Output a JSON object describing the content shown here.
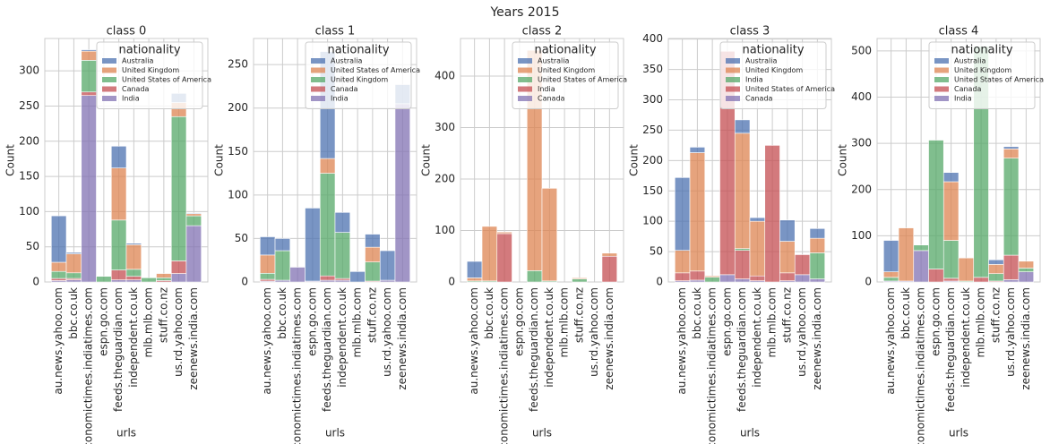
{
  "title": "Years 2015",
  "chart_data": [
    {
      "type": "bar",
      "stacked": true,
      "title": "class 0",
      "xlabel": "urls",
      "ylabel": "Count",
      "categories": [
        "au.news.yahoo.com",
        "bbc.co.uk",
        "economictimes.indiatimes.com",
        "espn.go.com",
        "feeds.theguardian.com",
        "independent.co.uk",
        "mlb.mlb.com",
        "stuff.co.nz",
        "us.rd.yahoo.com",
        "zeenews.india.com"
      ],
      "series": [
        {
          "name": "Australia",
          "color": "#4c72b0",
          "values": [
            66,
            2,
            2,
            0,
            31,
            2,
            0,
            0,
            13,
            1
          ]
        },
        {
          "name": "United Kingdom",
          "color": "#dd8452",
          "values": [
            13,
            27,
            13,
            0,
            74,
            35,
            0,
            6,
            20,
            3
          ]
        },
        {
          "name": "United States of America",
          "color": "#55a868",
          "values": [
            10,
            8,
            45,
            8,
            71,
            10,
            6,
            4,
            205,
            14
          ]
        },
        {
          "name": "Canada",
          "color": "#c44e52",
          "values": [
            3,
            2,
            5,
            0,
            14,
            5,
            0,
            2,
            18,
            0
          ]
        },
        {
          "name": "India",
          "color": "#8172b3",
          "values": [
            2,
            3,
            265,
            0,
            3,
            3,
            0,
            0,
            12,
            80
          ]
        }
      ],
      "ylim": [
        0,
        346
      ],
      "yticks": [
        0,
        50,
        100,
        150,
        200,
        250,
        300
      ],
      "grid": true,
      "legend": {
        "title": "nationality",
        "loc": "upper right"
      }
    },
    {
      "type": "bar",
      "stacked": true,
      "title": "class 1",
      "xlabel": "urls",
      "ylabel": "Count",
      "categories": [
        "au.news.yahoo.com",
        "bbc.co.uk",
        "economictimes.indiatimes.com",
        "espn.go.com",
        "feeds.theguardian.com",
        "independent.co.uk",
        "mlb.mlb.com",
        "stuff.co.nz",
        "us.rd.yahoo.com",
        "zeenews.india.com"
      ],
      "series": [
        {
          "name": "Australia",
          "color": "#4c72b0",
          "values": [
            21,
            14,
            0,
            84,
            123,
            23,
            12,
            15,
            34,
            22
          ]
        },
        {
          "name": "United States of America",
          "color": "#dd8452",
          "values": [
            21,
            0,
            0,
            0,
            17,
            0,
            0,
            17,
            0,
            0
          ]
        },
        {
          "name": "United Kingdom",
          "color": "#55a868",
          "values": [
            7,
            34,
            0,
            0,
            118,
            53,
            0,
            22,
            0,
            0
          ]
        },
        {
          "name": "Canada",
          "color": "#c44e52",
          "values": [
            2,
            0,
            0,
            0,
            5,
            2,
            0,
            1,
            0,
            0
          ]
        },
        {
          "name": "India",
          "color": "#8172b3",
          "values": [
            1,
            2,
            17,
            1,
            2,
            2,
            0,
            0,
            2,
            205
          ]
        }
      ],
      "ylim": [
        0,
        280
      ],
      "yticks": [
        0,
        50,
        100,
        150,
        200,
        250
      ],
      "grid": true,
      "legend": {
        "title": "nationality",
        "loc": "upper right"
      }
    },
    {
      "type": "bar",
      "stacked": true,
      "title": "class 2",
      "xlabel": "urls",
      "ylabel": "Count",
      "categories": [
        "au.news.yahoo.com",
        "bbc.co.uk",
        "economictimes.indiatimes.com",
        "espn.go.com",
        "feeds.theguardian.com",
        "independent.co.uk",
        "mlb.mlb.com",
        "stuff.co.nz",
        "us.rd.yahoo.com",
        "zeenews.india.com"
      ],
      "series": [
        {
          "name": "Australia",
          "color": "#4c72b0",
          "values": [
            32,
            0,
            0,
            0,
            0,
            0,
            0,
            0,
            0,
            0
          ]
        },
        {
          "name": "United Kingdom",
          "color": "#dd8452",
          "values": [
            6,
            106,
            3,
            0,
            428,
            180,
            0,
            2,
            0,
            6
          ]
        },
        {
          "name": "United States of America",
          "color": "#55a868",
          "values": [
            2,
            2,
            0,
            0,
            22,
            2,
            0,
            6,
            0,
            0
          ]
        },
        {
          "name": "India",
          "color": "#c44e52",
          "values": [
            0,
            0,
            94,
            0,
            0,
            0,
            0,
            0,
            0,
            50
          ]
        },
        {
          "name": "Canada",
          "color": "#8172b3",
          "values": [
            0,
            0,
            0,
            0,
            0,
            0,
            0,
            0,
            0,
            0
          ]
        }
      ],
      "ylim": [
        0,
        473
      ],
      "yticks": [
        0,
        100,
        200,
        300,
        400
      ],
      "grid": true,
      "legend": {
        "title": "nationality",
        "loc": "upper right"
      }
    },
    {
      "type": "bar",
      "stacked": true,
      "title": "class 3",
      "xlabel": "urls",
      "ylabel": "Count",
      "categories": [
        "au.news.yahoo.com",
        "bbc.co.uk",
        "economictimes.indiatimes.com",
        "espn.go.com",
        "feeds.theguardian.com",
        "independent.co.uk",
        "mlb.mlb.com",
        "stuff.co.nz",
        "us.rd.yahoo.com",
        "zeenews.india.com"
      ],
      "series": [
        {
          "name": "Australia",
          "color": "#4c72b0",
          "values": [
            120,
            9,
            0,
            0,
            22,
            6,
            0,
            35,
            0,
            16
          ]
        },
        {
          "name": "United Kingdom",
          "color": "#dd8452",
          "values": [
            37,
            195,
            2,
            0,
            190,
            90,
            0,
            52,
            0,
            24
          ]
        },
        {
          "name": "India",
          "color": "#55a868",
          "values": [
            0,
            0,
            8,
            0,
            3,
            0,
            0,
            0,
            0,
            43
          ]
        },
        {
          "name": "United States of America",
          "color": "#c44e52",
          "values": [
            13,
            15,
            0,
            368,
            47,
            8,
            225,
            13,
            33,
            0
          ]
        },
        {
          "name": "Canada",
          "color": "#8172b3",
          "values": [
            2,
            3,
            0,
            12,
            5,
            2,
            0,
            2,
            12,
            5
          ]
        }
      ],
      "ylim": [
        0,
        401
      ],
      "yticks": [
        0,
        50,
        100,
        150,
        200,
        250,
        300,
        350,
        400
      ],
      "grid": true,
      "legend": {
        "title": "nationality",
        "loc": "upper right"
      }
    },
    {
      "type": "bar",
      "stacked": true,
      "title": "class 4",
      "xlabel": "urls",
      "ylabel": "Count",
      "categories": [
        "au.news.yahoo.com",
        "bbc.co.uk",
        "economictimes.indiatimes.com",
        "espn.go.com",
        "feeds.theguardian.com",
        "independent.co.uk",
        "mlb.mlb.com",
        "stuff.co.nz",
        "us.rd.yahoo.com",
        "zeenews.india.com"
      ],
      "series": [
        {
          "name": "Australia",
          "color": "#4c72b0",
          "values": [
            68,
            0,
            0,
            0,
            20,
            0,
            0,
            10,
            5,
            0
          ]
        },
        {
          "name": "United Kingdom",
          "color": "#dd8452",
          "values": [
            12,
            115,
            0,
            0,
            127,
            50,
            0,
            20,
            20,
            15
          ]
        },
        {
          "name": "United States of America",
          "color": "#55a868",
          "values": [
            8,
            0,
            12,
            279,
            82,
            2,
            500,
            16,
            210,
            8
          ]
        },
        {
          "name": "Canada",
          "color": "#c44e52",
          "values": [
            0,
            0,
            0,
            28,
            6,
            0,
            10,
            2,
            53,
            0
          ]
        },
        {
          "name": "India",
          "color": "#8172b3",
          "values": [
            2,
            2,
            68,
            0,
            2,
            0,
            0,
            0,
            5,
            22
          ]
        }
      ],
      "ylim": [
        0,
        527
      ],
      "yticks": [
        0,
        100,
        200,
        300,
        400,
        500
      ],
      "grid": true,
      "legend": {
        "title": "nationality",
        "loc": "upper right"
      }
    }
  ]
}
